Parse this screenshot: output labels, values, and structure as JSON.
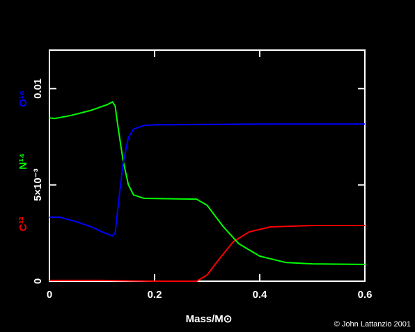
{
  "chart_data": {
    "type": "line",
    "xlabel": "Mass/M⊙",
    "credit": "© John Lattanzio 2001",
    "xlim": [
      0,
      0.6
    ],
    "xticks": [
      0,
      0.2,
      0.4,
      0.6
    ],
    "ylim": [
      0,
      0.012
    ],
    "yticks": [
      0,
      {
        "value": 0.005,
        "label": "5×10⁻³"
      },
      0.01
    ],
    "series": [
      {
        "name": "C¹²",
        "color": "#ff0000",
        "x": [
          0,
          0.1,
          0.2,
          0.28,
          0.3,
          0.32,
          0.35,
          0.38,
          0.42,
          0.5,
          0.6
        ],
        "values": [
          4e-05,
          4e-05,
          0,
          0,
          0.00032,
          0.00105,
          0.00206,
          0.00256,
          0.00282,
          0.00289,
          0.00289
        ]
      },
      {
        "name": "N¹⁴",
        "color": "#00ff00",
        "x": [
          0,
          0.01,
          0.04,
          0.08,
          0.11,
          0.12,
          0.125,
          0.13,
          0.14,
          0.15,
          0.16,
          0.18,
          0.28,
          0.3,
          0.33,
          0.36,
          0.4,
          0.45,
          0.5,
          0.6
        ],
        "values": [
          0.00848,
          0.00845,
          0.0086,
          0.00888,
          0.00917,
          0.00931,
          0.0091,
          0.00809,
          0.00628,
          0.00502,
          0.00448,
          0.0043,
          0.00426,
          0.00394,
          0.00285,
          0.00195,
          0.0013,
          0.00097,
          0.0009,
          0.00087
        ]
      },
      {
        "name": "O¹⁶",
        "color": "#0000ff",
        "x": [
          0,
          0.02,
          0.05,
          0.08,
          0.1,
          0.12,
          0.125,
          0.13,
          0.14,
          0.15,
          0.16,
          0.18,
          0.2,
          0.4,
          0.6
        ],
        "values": [
          0.00332,
          0.00332,
          0.0031,
          0.00282,
          0.00256,
          0.00235,
          0.0025,
          0.00375,
          0.0061,
          0.00744,
          0.0079,
          0.00809,
          0.00812,
          0.00816,
          0.00816
        ]
      }
    ]
  }
}
